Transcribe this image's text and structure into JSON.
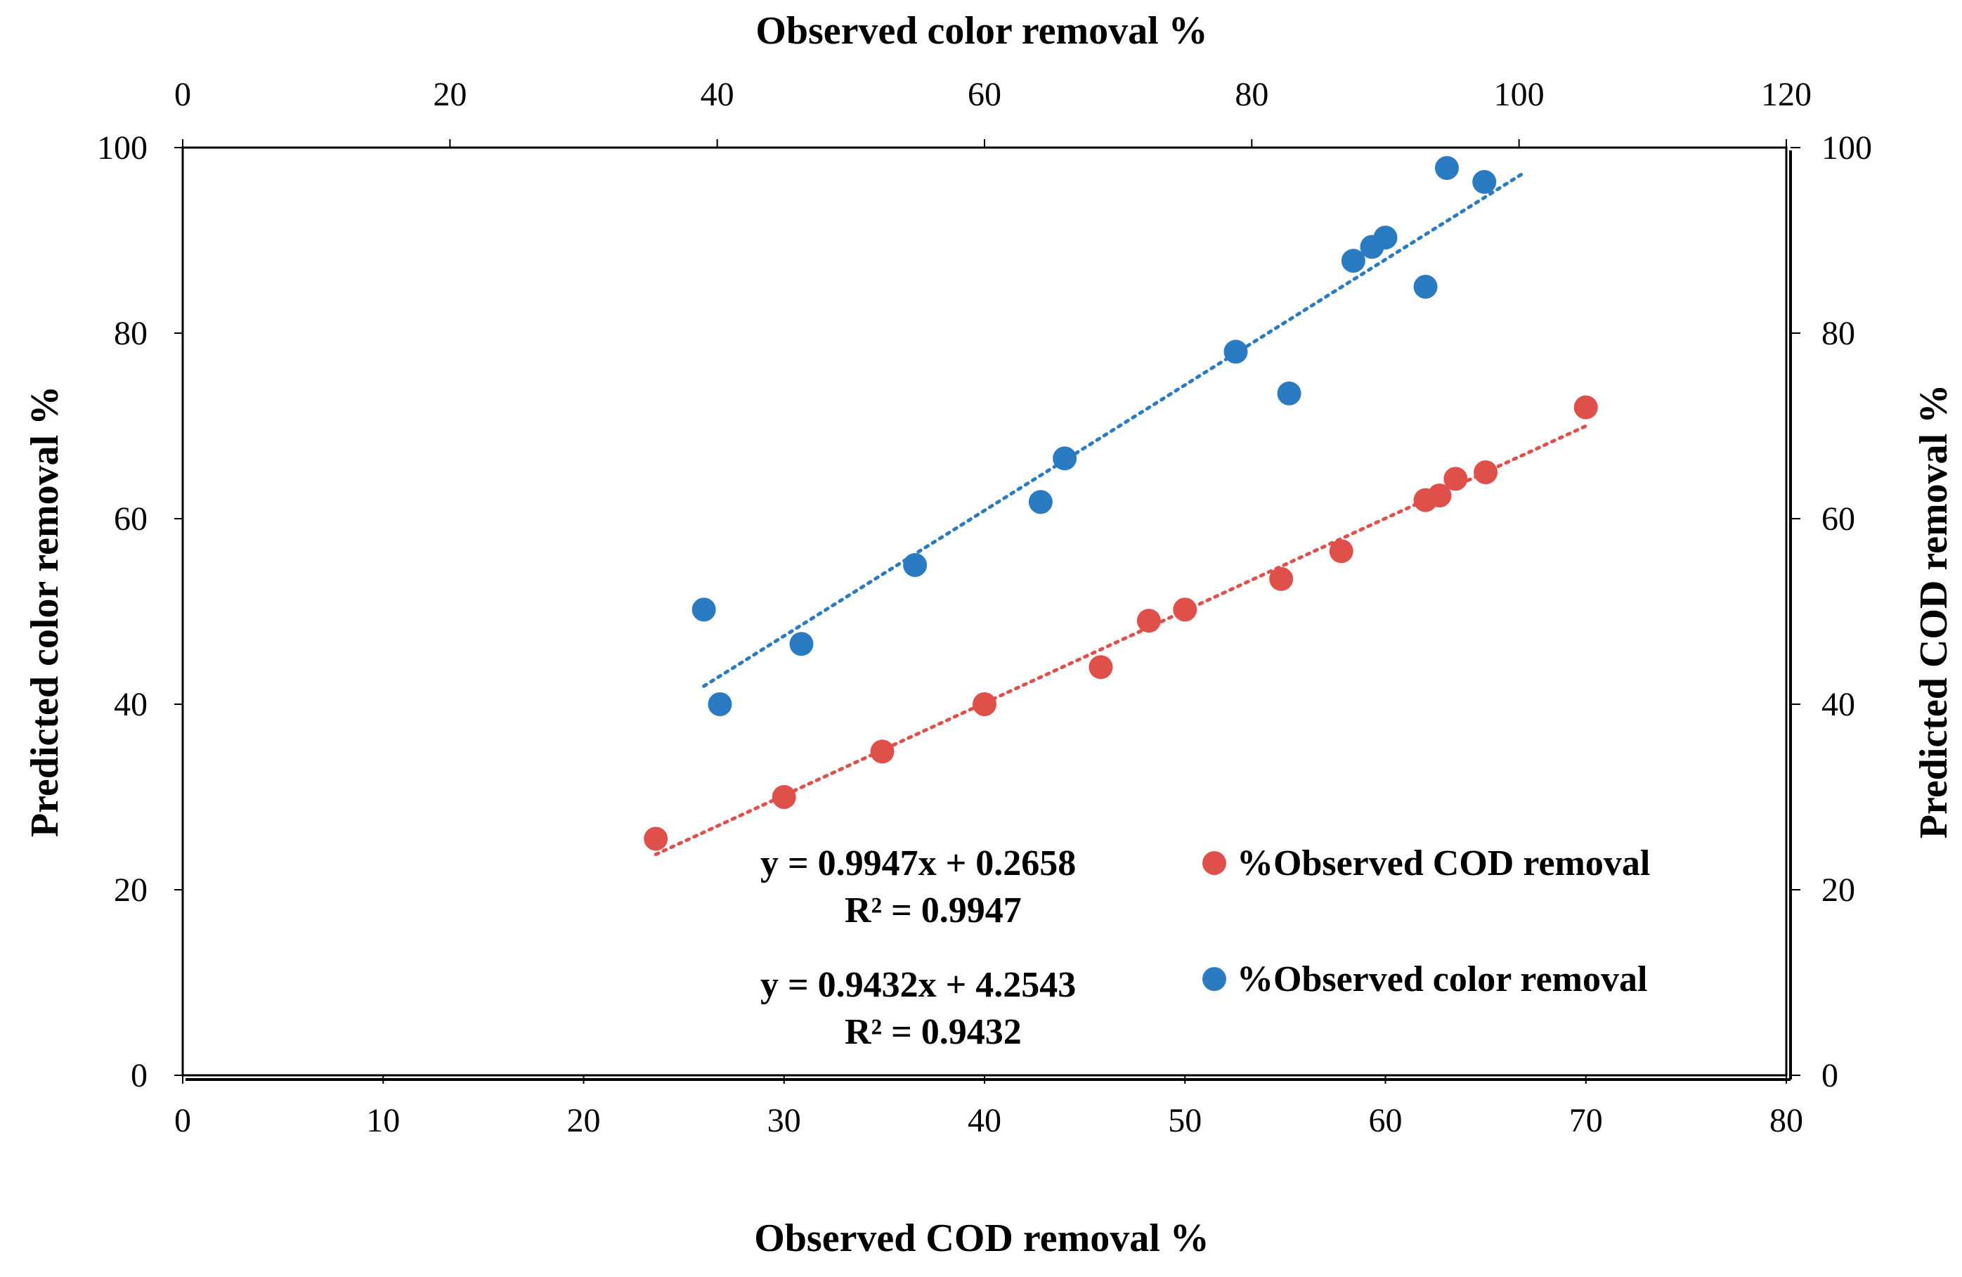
{
  "chart_data": {
    "type": "scatter",
    "axes": {
      "x_bottom": {
        "label": "Observed COD removal %",
        "range": [
          0,
          80
        ],
        "ticks": [
          0,
          10,
          20,
          30,
          40,
          50,
          60,
          70,
          80
        ]
      },
      "x_top": {
        "label": "Observed color removal %",
        "range": [
          0,
          120
        ],
        "ticks": [
          0,
          20,
          40,
          60,
          80,
          100,
          120
        ]
      },
      "y_left": {
        "label": "Predicted color removal %",
        "range": [
          0,
          100
        ],
        "ticks": [
          0,
          20,
          40,
          60,
          80,
          100
        ]
      },
      "y_right": {
        "label": "Predicted COD removal %",
        "range": [
          0,
          100
        ],
        "ticks": [
          0,
          20,
          40,
          60,
          80,
          100
        ]
      }
    },
    "series": [
      {
        "name": "%Observed COD removal",
        "color": "#e0504b",
        "x_axis": "bottom",
        "y_axis": "right",
        "points": [
          [
            23.6,
            25.5
          ],
          [
            30.0,
            30.0
          ],
          [
            34.9,
            34.9
          ],
          [
            40.0,
            40.0
          ],
          [
            45.8,
            44.0
          ],
          [
            48.2,
            49.0
          ],
          [
            50.0,
            50.2
          ],
          [
            54.8,
            53.5
          ],
          [
            57.8,
            56.5
          ],
          [
            62.0,
            62.0
          ],
          [
            62.7,
            62.5
          ],
          [
            63.5,
            64.3
          ],
          [
            65.0,
            65.0
          ],
          [
            70.0,
            72.0
          ]
        ],
        "trendline": {
          "x_range": [
            23.6,
            70.0
          ],
          "equation": "y = 0.9947x + 0.2658",
          "r2": "R² = 0.9947"
        }
      },
      {
        "name": "%Observed color removal",
        "color": "#2a7bc2",
        "x_axis": "top",
        "y_axis": "left",
        "points": [
          [
            39.0,
            50.2
          ],
          [
            40.2,
            40.0
          ],
          [
            46.3,
            46.5
          ],
          [
            54.8,
            55.0
          ],
          [
            64.2,
            61.8
          ],
          [
            66.0,
            66.5
          ],
          [
            78.8,
            78.0
          ],
          [
            82.8,
            73.5
          ],
          [
            87.6,
            87.8
          ],
          [
            89.0,
            89.3
          ],
          [
            90.0,
            90.3
          ],
          [
            93.0,
            85.0
          ],
          [
            94.6,
            97.8
          ],
          [
            97.4,
            96.3
          ]
        ],
        "trendline": {
          "x_range": [
            39.0,
            100.2
          ],
          "equation": "y = 0.9432x + 4.2543",
          "r2": "R² = 0.9432"
        }
      }
    ],
    "legend_position": "bottom-right"
  }
}
